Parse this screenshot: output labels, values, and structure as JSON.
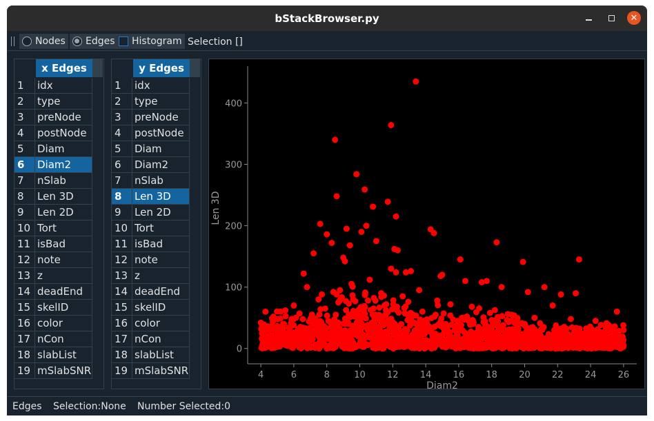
{
  "window": {
    "title": "bStackBrowser.py"
  },
  "toolbar": {
    "nodes_label": "Nodes",
    "edges_label": "Edges",
    "histogram_label": "Histogram",
    "selection_label": "Selection []"
  },
  "x_table": {
    "header": "x Edges",
    "selected_row": 6,
    "rows": [
      "idx",
      "type",
      "preNode",
      "postNode",
      "Diam",
      "Diam2",
      "nSlab",
      "Len 3D",
      "Len 2D",
      "Tort",
      "isBad",
      "note",
      "z",
      "deadEnd",
      "skelID",
      "color",
      "nCon",
      "slabList",
      "mSlabSNR"
    ]
  },
  "y_table": {
    "header": "y Edges",
    "selected_row": 8,
    "rows": [
      "idx",
      "type",
      "preNode",
      "postNode",
      "Diam",
      "Diam2",
      "nSlab",
      "Len 3D",
      "Len 2D",
      "Tort",
      "isBad",
      "note",
      "z",
      "deadEnd",
      "skelID",
      "color",
      "nCon",
      "slabList",
      "mSlabSNR"
    ]
  },
  "chart_data": {
    "type": "scatter",
    "xlabel": "Diam2",
    "ylabel": "Len 3D",
    "xlim": [
      3.2,
      26.8
    ],
    "ylim": [
      -25,
      460
    ],
    "xticks": [
      4,
      6,
      8,
      10,
      12,
      14,
      16,
      18,
      20,
      22,
      24,
      26
    ],
    "yticks": [
      0,
      100,
      200,
      300,
      400
    ],
    "color": "#ff0000",
    "x": [
      13.4,
      11.9,
      8.5,
      9.8,
      10.3,
      8.6,
      10.8,
      11.7,
      12.2,
      7.6,
      10.4,
      14.3,
      14.5,
      9.2,
      8.0,
      10.1,
      11.0,
      9.4,
      12.1,
      8.3,
      18.3,
      23.3,
      19.9,
      12.2,
      12.8,
      14.9,
      16.1,
      12.3,
      7.2,
      9.0,
      9.1,
      11.9,
      13.1,
      6.6,
      17.4,
      20.2,
      15.0,
      16.4,
      21.2,
      17.7,
      18.6,
      22.2,
      23.1,
      25.6,
      4.0,
      4.5,
      5.2,
      6.0,
      7.5,
      8.8,
      9.5,
      10.6,
      11.3,
      12.6,
      13.6,
      14.7,
      15.5,
      16.8,
      17.9,
      19.2,
      20.6,
      21.7,
      22.8,
      24.3,
      25.1,
      26.0,
      4.2,
      4.8,
      5.6,
      6.4,
      7.1,
      7.9,
      8.7,
      9.7,
      10.9,
      11.5,
      12.9,
      13.9,
      15.2,
      16.5,
      17.2,
      18.9,
      19.6,
      20.9,
      22.4,
      23.7,
      24.8,
      25.7,
      5.0,
      6.2,
      7.3,
      8.1,
      9.3,
      10.2,
      11.1,
      12.4,
      13.3,
      14.1,
      15.8,
      17.0,
      18.4,
      19.9,
      21.4,
      22.1,
      23.4,
      24.5,
      25.4,
      26.0,
      6.8,
      7.7,
      8.4,
      9.6,
      10.5,
      11.6,
      12.7,
      13.8,
      14.6,
      16.2,
      17.6,
      18.7,
      20.4,
      21.8,
      23.0,
      24.1,
      25.9,
      5.4,
      6.6,
      7.4,
      8.9,
      9.9,
      10.8,
      11.8,
      13.0,
      14.4,
      15.6,
      16.9,
      18.1,
      19.4,
      20.7,
      22.6,
      23.9,
      25.3
    ],
    "y": [
      435,
      364,
      340,
      284,
      259,
      248,
      231,
      239,
      215,
      203,
      200,
      194,
      188,
      195,
      186,
      190,
      175,
      168,
      162,
      172,
      173,
      145,
      141,
      124,
      124,
      118,
      145,
      160,
      155,
      148,
      142,
      130,
      126,
      122,
      108,
      92,
      120,
      110,
      100,
      110,
      100,
      88,
      90,
      60,
      42,
      30,
      60,
      70,
      80,
      95,
      105,
      112,
      90,
      85,
      95,
      78,
      72,
      68,
      58,
      55,
      50,
      70,
      48,
      45,
      38,
      30,
      8,
      12,
      25,
      35,
      55,
      65,
      75,
      60,
      50,
      70,
      55,
      45,
      40,
      52,
      35,
      30,
      42,
      28,
      35,
      25,
      20,
      18,
      15,
      22,
      30,
      45,
      40,
      35,
      48,
      30,
      42,
      28,
      36,
      25,
      30,
      22,
      18,
      25,
      20,
      15,
      10,
      5,
      100,
      88,
      92,
      80,
      78,
      72,
      66,
      60,
      55,
      50,
      44,
      38,
      34,
      30,
      26,
      22,
      12,
      40,
      32,
      28,
      24,
      20,
      18,
      16,
      14,
      12,
      10,
      8,
      12,
      14,
      16,
      10,
      8,
      6
    ]
  },
  "statusbar": {
    "mode": "Edges",
    "selection": "Selection:None",
    "count": "Number Selected:0"
  }
}
